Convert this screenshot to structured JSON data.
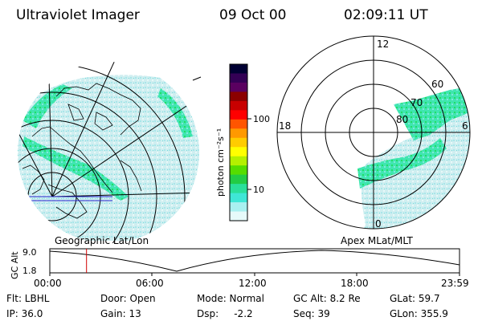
{
  "header": {
    "instrument": "Ultraviolet Imager",
    "date": "09 Oct 00",
    "time": "02:09:11 UT"
  },
  "colorbar": {
    "unit_label": "photon cm⁻²s⁻¹",
    "ticks": [
      "100",
      "10"
    ],
    "colors": [
      "#000033",
      "#330055",
      "#5a0060",
      "#8b0000",
      "#c80000",
      "#ff0000",
      "#ff5500",
      "#ff9900",
      "#ffcc00",
      "#ffff00",
      "#b4f000",
      "#55dd00",
      "#22cc44",
      "#2adf9a",
      "#3fe6d6",
      "#a8f0f0",
      "#e6fafa"
    ]
  },
  "left_map": {
    "caption": "Geographic Lat/Lon"
  },
  "right_map": {
    "caption": "Apex MLat/MLT",
    "mlt_labels": [
      "12",
      "18",
      "6",
      "0"
    ],
    "lat_labels": [
      "60",
      "70",
      "80"
    ]
  },
  "altitude_plot": {
    "ylabel": "GC Alt",
    "yticks": [
      "9.0",
      "1.8"
    ],
    "xticks": [
      "00:00",
      "06:00",
      "12:00",
      "18:00",
      "23:59"
    ],
    "marker_time_hours": 2.15
  },
  "info": [
    [
      "Flt: LBHL",
      "Door: Open",
      "Mode: Normal",
      "GC Alt: 8.2 Re",
      "GLat:  59.7"
    ],
    [
      "IP: 36.0",
      "Gain: 13",
      "Dsp:     -2.2",
      "Seq: 39",
      "GLon: 355.9"
    ]
  ],
  "colors": {
    "aurora_green": "#2adf9a",
    "aurora_bright": "#22dd55",
    "cyan": "#3fe6d6",
    "pale": "#d6f4f4",
    "marker": "#d00000"
  }
}
